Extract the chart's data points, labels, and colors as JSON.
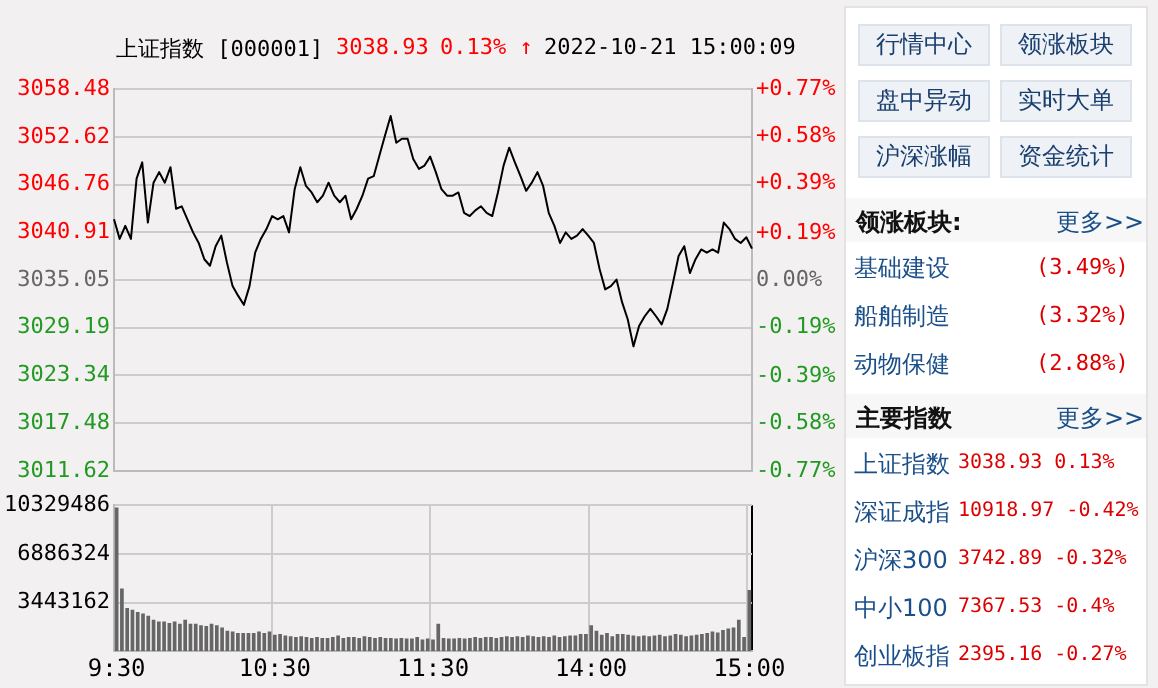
{
  "chart_data": [
    {
      "type": "line",
      "title": "上证指数 [000001]",
      "annotations": [
        "3038.93",
        "0.13% ↑",
        "2022-10-21 15:00:09"
      ],
      "categories": [
        null,
        null,
        null,
        null,
        null,
        null,
        null,
        null,
        null,
        null,
        null,
        null,
        null,
        null,
        null,
        null,
        null,
        null,
        null,
        null,
        null,
        null,
        null,
        null,
        null,
        null,
        null,
        null,
        null,
        null,
        null,
        null,
        null,
        null,
        null,
        null,
        null,
        null,
        null,
        null,
        null,
        null,
        null,
        null,
        null,
        null,
        null,
        null,
        null,
        null,
        null,
        null,
        null,
        null,
        null,
        null,
        null,
        null,
        null,
        null,
        null,
        null,
        null,
        null,
        null,
        null,
        null,
        null,
        null,
        null,
        null,
        null,
        null,
        null,
        null,
        null,
        null,
        null,
        null,
        null,
        null,
        null,
        null,
        null,
        null,
        null,
        null,
        null,
        null,
        null,
        null,
        null,
        null,
        null,
        null,
        null,
        null,
        null,
        null,
        null,
        null,
        null,
        null,
        null,
        null,
        null,
        null,
        null,
        null,
        null,
        null,
        null,
        null,
        null
      ],
      "values": [
        3042.5,
        3040.1,
        3041.7,
        3040.1,
        3047.5,
        3049.5,
        3042.1,
        3047.0,
        3048.3,
        3047.0,
        3048.9,
        3043.8,
        3044.1,
        3042.5,
        3040.9,
        3039.6,
        3037.6,
        3036.8,
        3039.2,
        3040.5,
        3037.2,
        3034.3,
        3033.1,
        3032.0,
        3034.3,
        3038.4,
        3040.1,
        3041.3,
        3042.9,
        3042.5,
        3042.9,
        3040.9,
        3046.2,
        3048.9,
        3046.6,
        3045.8,
        3044.6,
        3045.4,
        3047.0,
        3045.4,
        3044.6,
        3045.4,
        3042.5,
        3043.8,
        3045.4,
        3047.5,
        3047.8,
        3050.3,
        3052.8,
        3055.2,
        3051.9,
        3052.4,
        3052.4,
        3049.9,
        3048.7,
        3049.1,
        3050.2,
        3048.3,
        3046.2,
        3045.4,
        3045.4,
        3045.8,
        3043.3,
        3042.9,
        3043.6,
        3044.1,
        3043.3,
        3042.9,
        3045.8,
        3049.1,
        3051.3,
        3049.5,
        3047.8,
        3046.0,
        3047.0,
        3048.3,
        3046.6,
        3043.3,
        3041.7,
        3039.6,
        3040.9,
        3040.1,
        3040.5,
        3041.3,
        3040.5,
        3039.6,
        3036.4,
        3033.9,
        3034.3,
        3035.1,
        3032.3,
        3030.2,
        3026.9,
        3029.4,
        3030.6,
        3031.5,
        3030.6,
        3029.6,
        3031.5,
        3034.7,
        3038.0,
        3039.2,
        3035.9,
        3037.6,
        3038.8,
        3038.4,
        3038.8,
        3038.4,
        3042.1,
        3041.3,
        3040.1,
        3039.6,
        3040.3,
        3038.9
      ],
      "color": "#000000",
      "marker": "none",
      "line_style": "solid",
      "grid": "y",
      "legend": false,
      "tick_labels": "y",
      "ylim": [
        3011.62,
        3058.48
      ],
      "yticks": [
        3011.62,
        3017.48,
        3023.34,
        3029.19,
        3035.05,
        3040.91,
        3046.76,
        3052.62,
        3058.48
      ],
      "y2lim": [
        -0.77,
        0.77
      ],
      "y2ticks": [
        {
          "value": -0.77,
          "label": "-0.77%"
        },
        {
          "value": -0.58,
          "label": "-0.58%"
        },
        {
          "value": -0.39,
          "label": "-0.39%"
        },
        {
          "value": -0.19,
          "label": "-0.19%"
        },
        {
          "value": 0,
          "label": "0.00%"
        },
        {
          "value": 0.19,
          "label": "+0.19%"
        },
        {
          "value": 0.39,
          "label": "+0.39%"
        },
        {
          "value": 0.58,
          "label": "+0.58%"
        },
        {
          "value": 0.77,
          "label": "+0.77%"
        }
      ]
    },
    {
      "type": "bar",
      "color": "#666666",
      "grid": true,
      "legend": false,
      "categories": [
        "9:30",
        null,
        null,
        null,
        null,
        null,
        null,
        null,
        null,
        null,
        null,
        null,
        null,
        null,
        null,
        null,
        null,
        null,
        null,
        null,
        null,
        null,
        null,
        null,
        null,
        null,
        null,
        null,
        null,
        null,
        "10:30",
        null,
        null,
        null,
        null,
        null,
        null,
        null,
        null,
        null,
        null,
        null,
        null,
        null,
        null,
        null,
        null,
        null,
        null,
        null,
        null,
        null,
        null,
        null,
        null,
        null,
        null,
        null,
        null,
        null,
        "11:30",
        null,
        null,
        null,
        null,
        null,
        null,
        null,
        null,
        null,
        null,
        null,
        null,
        null,
        null,
        null,
        null,
        null,
        null,
        null,
        null,
        null,
        null,
        null,
        null,
        null,
        null,
        null,
        null,
        null,
        "14:00",
        null,
        null,
        null,
        null,
        null,
        null,
        null,
        null,
        null,
        null,
        null,
        null,
        null,
        null,
        null,
        null,
        null,
        null,
        null,
        null,
        null,
        null,
        null,
        null,
        null,
        null,
        null,
        null,
        null,
        "15:00"
      ],
      "values": [
        10160000,
        4440000,
        3050000,
        2940000,
        2780000,
        2670000,
        2500000,
        2220000,
        2110000,
        2110000,
        2000000,
        2110000,
        1940000,
        2220000,
        1940000,
        1940000,
        1830000,
        1780000,
        1940000,
        1830000,
        1670000,
        1440000,
        1390000,
        1280000,
        1280000,
        1280000,
        1280000,
        1390000,
        1280000,
        1390000,
        1170000,
        1220000,
        1110000,
        1060000,
        1000000,
        1060000,
        1000000,
        940000,
        1000000,
        940000,
        940000,
        1000000,
        1110000,
        940000,
        1000000,
        1000000,
        940000,
        1060000,
        1000000,
        940000,
        1000000,
        940000,
        940000,
        890000,
        940000,
        890000,
        890000,
        1000000,
        830000,
        890000,
        830000,
        1940000,
        940000,
        890000,
        890000,
        940000,
        890000,
        940000,
        1000000,
        940000,
        1000000,
        1000000,
        940000,
        1000000,
        1060000,
        1000000,
        1060000,
        1000000,
        1110000,
        1060000,
        1000000,
        1060000,
        1000000,
        1110000,
        1000000,
        1060000,
        1110000,
        1110000,
        1220000,
        1220000,
        1830000,
        1440000,
        1170000,
        1280000,
        1060000,
        1220000,
        1220000,
        1170000,
        1110000,
        1060000,
        1110000,
        1060000,
        1110000,
        1170000,
        1060000,
        1110000,
        1220000,
        1170000,
        1060000,
        1110000,
        1170000,
        1220000,
        1280000,
        1390000,
        1330000,
        1500000,
        1610000,
        1670000,
        2220000,
        1000000,
        4330000
      ],
      "ylim": [
        0,
        10329486
      ],
      "yticks": [
        3443162,
        6886324,
        10329486
      ]
    },
    {
      "type": "other",
      "annotations": [
        "行情中心",
        "领涨板块",
        "盘中异动",
        "实时大单",
        "沪深涨幅",
        "资金统计",
        "领涨板块:",
        "更多>>",
        "基础建设",
        "(3.49%)",
        "船舶制造",
        "(3.32%)",
        "动物保健",
        "(2.88%)",
        "主要指数",
        "更多>>",
        "上证指数",
        "3038.93 0.13%",
        "深证成指",
        "10918.97 -0.42%",
        "沪深300",
        "3742.89 -0.32%",
        "中小100",
        "7367.53 -0.4%",
        "创业板指",
        "2395.16 -0.27%"
      ]
    }
  ]
}
